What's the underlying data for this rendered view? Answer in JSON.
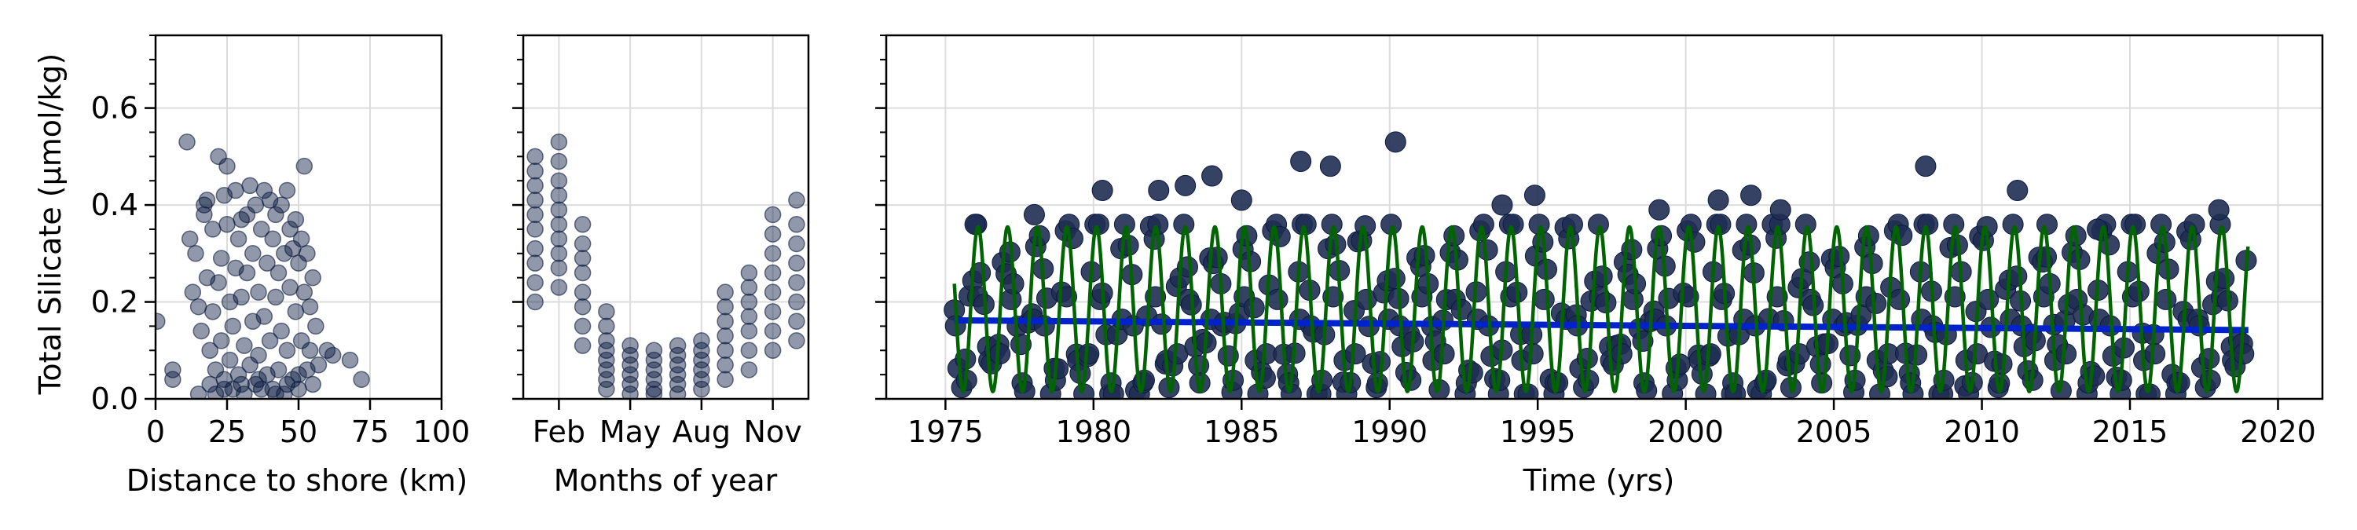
{
  "chart_data": [
    {
      "type": "scatter",
      "panel": "distance",
      "xlabel": "Distance to shore (km)",
      "ylabel": "Total Silicate (μmol/kg)",
      "xlim": [
        0,
        100
      ],
      "ylim": [
        0,
        0.75
      ],
      "xticks": [
        "0",
        "25",
        "50",
        "75",
        "100"
      ],
      "xtick_values": [
        0,
        25,
        50,
        75,
        100
      ],
      "yticks": [
        "0.0",
        "0.2",
        "0.4",
        "0.6"
      ],
      "ytick_values": [
        0,
        0.2,
        0.4,
        0.6
      ],
      "grid": true,
      "point_color": "#0b1a40",
      "points": [
        [
          0.5,
          0.16
        ],
        [
          6,
          0.06
        ],
        [
          6,
          0.04
        ],
        [
          11,
          0.53
        ],
        [
          12,
          0.33
        ],
        [
          13,
          0.22
        ],
        [
          14,
          0.3
        ],
        [
          15,
          0.19
        ],
        [
          16,
          0.14
        ],
        [
          17,
          0.38
        ],
        [
          17,
          0.4
        ],
        [
          18,
          0.41
        ],
        [
          18,
          0.25
        ],
        [
          19,
          0.1
        ],
        [
          19,
          0.03
        ],
        [
          20,
          0.35
        ],
        [
          20,
          0.18
        ],
        [
          21,
          0.01
        ],
        [
          21,
          0.06
        ],
        [
          22,
          0.5
        ],
        [
          22,
          0.24
        ],
        [
          23,
          0.29
        ],
        [
          23,
          0.12
        ],
        [
          24,
          0.42
        ],
        [
          24,
          0.04
        ],
        [
          25,
          0.48
        ],
        [
          25,
          0.36
        ],
        [
          26,
          0.2
        ],
        [
          26,
          0.08
        ],
        [
          27,
          0.02
        ],
        [
          27,
          0.15
        ],
        [
          28,
          0.43
        ],
        [
          28,
          0.27
        ],
        [
          29,
          0.33
        ],
        [
          29,
          0.05
        ],
        [
          30,
          0.37
        ],
        [
          30,
          0.21
        ],
        [
          31,
          0.01
        ],
        [
          31,
          0.11
        ],
        [
          32,
          0.38
        ],
        [
          32,
          0.26
        ],
        [
          33,
          0.44
        ],
        [
          33,
          0.07
        ],
        [
          34,
          0.16
        ],
        [
          34,
          0.3
        ],
        [
          35,
          0.03
        ],
        [
          35,
          0.4
        ],
        [
          36,
          0.22
        ],
        [
          36,
          0.09
        ],
        [
          37,
          0.35
        ],
        [
          37,
          0.02
        ],
        [
          38,
          0.43
        ],
        [
          38,
          0.17
        ],
        [
          39,
          0.28
        ],
        [
          39,
          0.05
        ],
        [
          40,
          0.41
        ],
        [
          40,
          0.12
        ],
        [
          41,
          0.33
        ],
        [
          41,
          0.02
        ],
        [
          42,
          0.21
        ],
        [
          42,
          0.38
        ],
        [
          43,
          0.06
        ],
        [
          43,
          0.26
        ],
        [
          44,
          0.14
        ],
        [
          44,
          0.4
        ],
        [
          45,
          0.01
        ],
        [
          45,
          0.3
        ],
        [
          46,
          0.43
        ],
        [
          46,
          0.1
        ],
        [
          47,
          0.23
        ],
        [
          47,
          0.35
        ],
        [
          48,
          0.04
        ],
        [
          48,
          0.31
        ],
        [
          49,
          0.18
        ],
        [
          49,
          0.37
        ],
        [
          50,
          0.02
        ],
        [
          50,
          0.28
        ],
        [
          51,
          0.33
        ],
        [
          51,
          0.12
        ],
        [
          52,
          0.48
        ],
        [
          52,
          0.22
        ],
        [
          53,
          0.06
        ],
        [
          53,
          0.3
        ],
        [
          54,
          0.19
        ],
        [
          54,
          0.1
        ],
        [
          55,
          0.25
        ],
        [
          55,
          0.03
        ],
        [
          56,
          0.15
        ],
        [
          57,
          0.07
        ],
        [
          60,
          0.1
        ],
        [
          62,
          0.09
        ],
        [
          68,
          0.08
        ],
        [
          72,
          0.04
        ],
        [
          15,
          0.01
        ],
        [
          24,
          0.02
        ],
        [
          30,
          0.03
        ],
        [
          36,
          0.04
        ],
        [
          42,
          0.01
        ],
        [
          46,
          0.03
        ],
        [
          50,
          0.05
        ]
      ]
    },
    {
      "type": "scatter",
      "panel": "months",
      "xlabel": "Months of year",
      "ylim": [
        0,
        0.75
      ],
      "xlim": [
        0.5,
        12.5
      ],
      "xticks": [
        "Feb",
        "May",
        "Aug",
        "Nov"
      ],
      "xtick_values": [
        2,
        5,
        8,
        11
      ],
      "yticks": [
        "0.0",
        "0.2",
        "0.4",
        "0.6"
      ],
      "ytick_values": [
        0,
        0.2,
        0.4,
        0.6
      ],
      "grid": true,
      "point_color": "#0b1a40",
      "points": [
        [
          1,
          0.2
        ],
        [
          1,
          0.24
        ],
        [
          1,
          0.28
        ],
        [
          1,
          0.31
        ],
        [
          1,
          0.35
        ],
        [
          1,
          0.38
        ],
        [
          1,
          0.41
        ],
        [
          1,
          0.44
        ],
        [
          1,
          0.47
        ],
        [
          1,
          0.5
        ],
        [
          2,
          0.23
        ],
        [
          2,
          0.27
        ],
        [
          2,
          0.3
        ],
        [
          2,
          0.33
        ],
        [
          2,
          0.36
        ],
        [
          2,
          0.39
        ],
        [
          2,
          0.42
        ],
        [
          2,
          0.45
        ],
        [
          2,
          0.49
        ],
        [
          2,
          0.53
        ],
        [
          3,
          0.11
        ],
        [
          3,
          0.15
        ],
        [
          3,
          0.19
        ],
        [
          3,
          0.22
        ],
        [
          3,
          0.26
        ],
        [
          3,
          0.29
        ],
        [
          3,
          0.32
        ],
        [
          3,
          0.36
        ],
        [
          4,
          0.02
        ],
        [
          4,
          0.04
        ],
        [
          4,
          0.06
        ],
        [
          4,
          0.08
        ],
        [
          4,
          0.1
        ],
        [
          4,
          0.12
        ],
        [
          4,
          0.15
        ],
        [
          4,
          0.18
        ],
        [
          5,
          0.01
        ],
        [
          5,
          0.03
        ],
        [
          5,
          0.05
        ],
        [
          5,
          0.07
        ],
        [
          5,
          0.09
        ],
        [
          5,
          0.11
        ],
        [
          6,
          0.01
        ],
        [
          6,
          0.02
        ],
        [
          6,
          0.04
        ],
        [
          6,
          0.06
        ],
        [
          6,
          0.08
        ],
        [
          6,
          0.1
        ],
        [
          7,
          0.01
        ],
        [
          7,
          0.03
        ],
        [
          7,
          0.05
        ],
        [
          7,
          0.07
        ],
        [
          7,
          0.09
        ],
        [
          7,
          0.11
        ],
        [
          8,
          0.02
        ],
        [
          8,
          0.04
        ],
        [
          8,
          0.06
        ],
        [
          8,
          0.08
        ],
        [
          8,
          0.1
        ],
        [
          8,
          0.12
        ],
        [
          9,
          0.04
        ],
        [
          9,
          0.07
        ],
        [
          9,
          0.1
        ],
        [
          9,
          0.13
        ],
        [
          9,
          0.16
        ],
        [
          9,
          0.19
        ],
        [
          9,
          0.22
        ],
        [
          10,
          0.06
        ],
        [
          10,
          0.1
        ],
        [
          10,
          0.14
        ],
        [
          10,
          0.17
        ],
        [
          10,
          0.2
        ],
        [
          10,
          0.23
        ],
        [
          10,
          0.26
        ],
        [
          11,
          0.1
        ],
        [
          11,
          0.14
        ],
        [
          11,
          0.18
        ],
        [
          11,
          0.22
        ],
        [
          11,
          0.26
        ],
        [
          11,
          0.3
        ],
        [
          11,
          0.34
        ],
        [
          11,
          0.38
        ],
        [
          12,
          0.12
        ],
        [
          12,
          0.16
        ],
        [
          12,
          0.2
        ],
        [
          12,
          0.24
        ],
        [
          12,
          0.28
        ],
        [
          12,
          0.32
        ],
        [
          12,
          0.36
        ],
        [
          12,
          0.41
        ]
      ]
    },
    {
      "type": "line",
      "panel": "time",
      "xlabel": "Time (yrs)",
      "xlim": [
        1973,
        2021.5
      ],
      "ylim": [
        0,
        0.75
      ],
      "xticks": [
        "1975",
        "1980",
        "1985",
        "1990",
        "1995",
        "2000",
        "2005",
        "2010",
        "2015",
        "2020"
      ],
      "xtick_values": [
        1975,
        1980,
        1985,
        1990,
        1995,
        2000,
        2005,
        2010,
        2015,
        2020
      ],
      "yticks": [
        "0.0",
        "0.2",
        "0.4",
        "0.6"
      ],
      "ytick_values": [
        0,
        0.2,
        0.4,
        0.6
      ],
      "grid": true,
      "scatter_color": "#1f2e52",
      "trend": {
        "color": "#0022cc",
        "x": [
          1975.3,
          2019.0
        ],
        "y": [
          0.162,
          0.142
        ]
      },
      "seasonal": {
        "color": "#006400",
        "x_start": 1975.3,
        "x_end": 2019.0,
        "mean": 0.185,
        "amplitude": 0.17,
        "peak_phase": 0.1
      },
      "outliers": [
        [
          1976.0,
          0.36
        ],
        [
          1978.0,
          0.38
        ],
        [
          1980.3,
          0.43
        ],
        [
          1982.2,
          0.43
        ],
        [
          1983.1,
          0.44
        ],
        [
          1984.0,
          0.46
        ],
        [
          1985.0,
          0.41
        ],
        [
          1987.0,
          0.49
        ],
        [
          1988.0,
          0.48
        ],
        [
          1990.2,
          0.53
        ],
        [
          1993.8,
          0.4
        ],
        [
          1994.9,
          0.42
        ],
        [
          1999.1,
          0.39
        ],
        [
          2001.1,
          0.41
        ],
        [
          2002.2,
          0.42
        ],
        [
          2003.2,
          0.39
        ],
        [
          2008.1,
          0.48
        ],
        [
          2011.2,
          0.43
        ],
        [
          2012.2,
          0.36
        ],
        [
          2013.9,
          0.35
        ],
        [
          2018.0,
          0.39
        ]
      ]
    }
  ]
}
